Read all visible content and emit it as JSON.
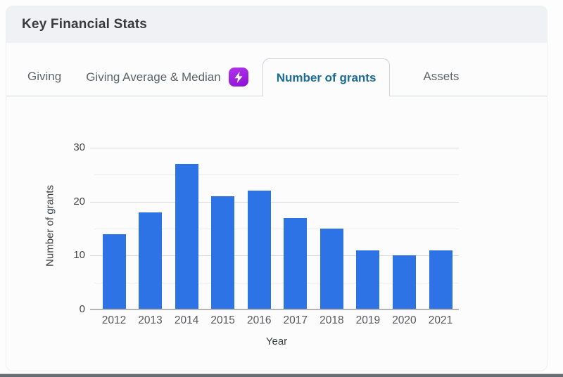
{
  "card": {
    "title": "Key Financial Stats"
  },
  "tabs": [
    {
      "label": "Giving",
      "active": false
    },
    {
      "label": "Giving Average & Median",
      "active": false,
      "badge_icon": "lightning-bolt-icon"
    },
    {
      "label": "Number of grants",
      "active": true
    },
    {
      "label": "Assets",
      "active": false
    }
  ],
  "chart_data": {
    "type": "bar",
    "categories": [
      "2012",
      "2013",
      "2014",
      "2015",
      "2016",
      "2017",
      "2018",
      "2019",
      "2020",
      "2021"
    ],
    "values": [
      14,
      18,
      27,
      21,
      22,
      17,
      15,
      11,
      10,
      11
    ],
    "title": "",
    "xlabel": "Year",
    "ylabel": "Number of grants",
    "ylim": [
      0,
      30
    ],
    "yticks": [
      0,
      10,
      20,
      30
    ],
    "minor_gridlines": [
      5,
      15,
      25
    ],
    "grid": true,
    "legend": "none",
    "bar_color": "#2e73e6"
  },
  "colors": {
    "bar": "#2e73e6",
    "active_tab_text": "#1a6c95",
    "inactive_tab_text": "#606468",
    "badge_gradient_start": "#b235eb",
    "badge_gradient_end": "#8c10d5",
    "header_background": "#eff1f4",
    "card_background": "#fcfcfd"
  }
}
